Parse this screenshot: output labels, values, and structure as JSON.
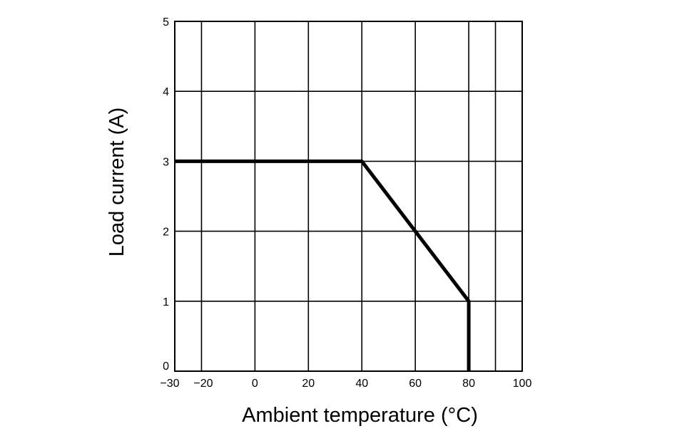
{
  "chart_data": {
    "type": "line",
    "title": "",
    "xlabel": "Ambient temperature (°C)",
    "ylabel": "Load current (A)",
    "xlim": [
      -30,
      100
    ],
    "ylim": [
      0,
      5
    ],
    "x_ticks": [
      -30,
      -20,
      0,
      20,
      40,
      60,
      80,
      100
    ],
    "x_tick_labels": [
      "−30",
      "−20",
      "0",
      "20",
      "40",
      "60",
      "80",
      "100"
    ],
    "y_ticks": [
      0,
      1,
      2,
      3,
      4,
      5
    ],
    "y_tick_labels": [
      "0",
      "1",
      "2",
      "3",
      "4",
      "5"
    ],
    "grid": true,
    "series": [
      {
        "x": [
          -30,
          40,
          60,
          80,
          80
        ],
        "y": [
          3,
          3,
          2,
          1,
          0
        ]
      }
    ]
  }
}
